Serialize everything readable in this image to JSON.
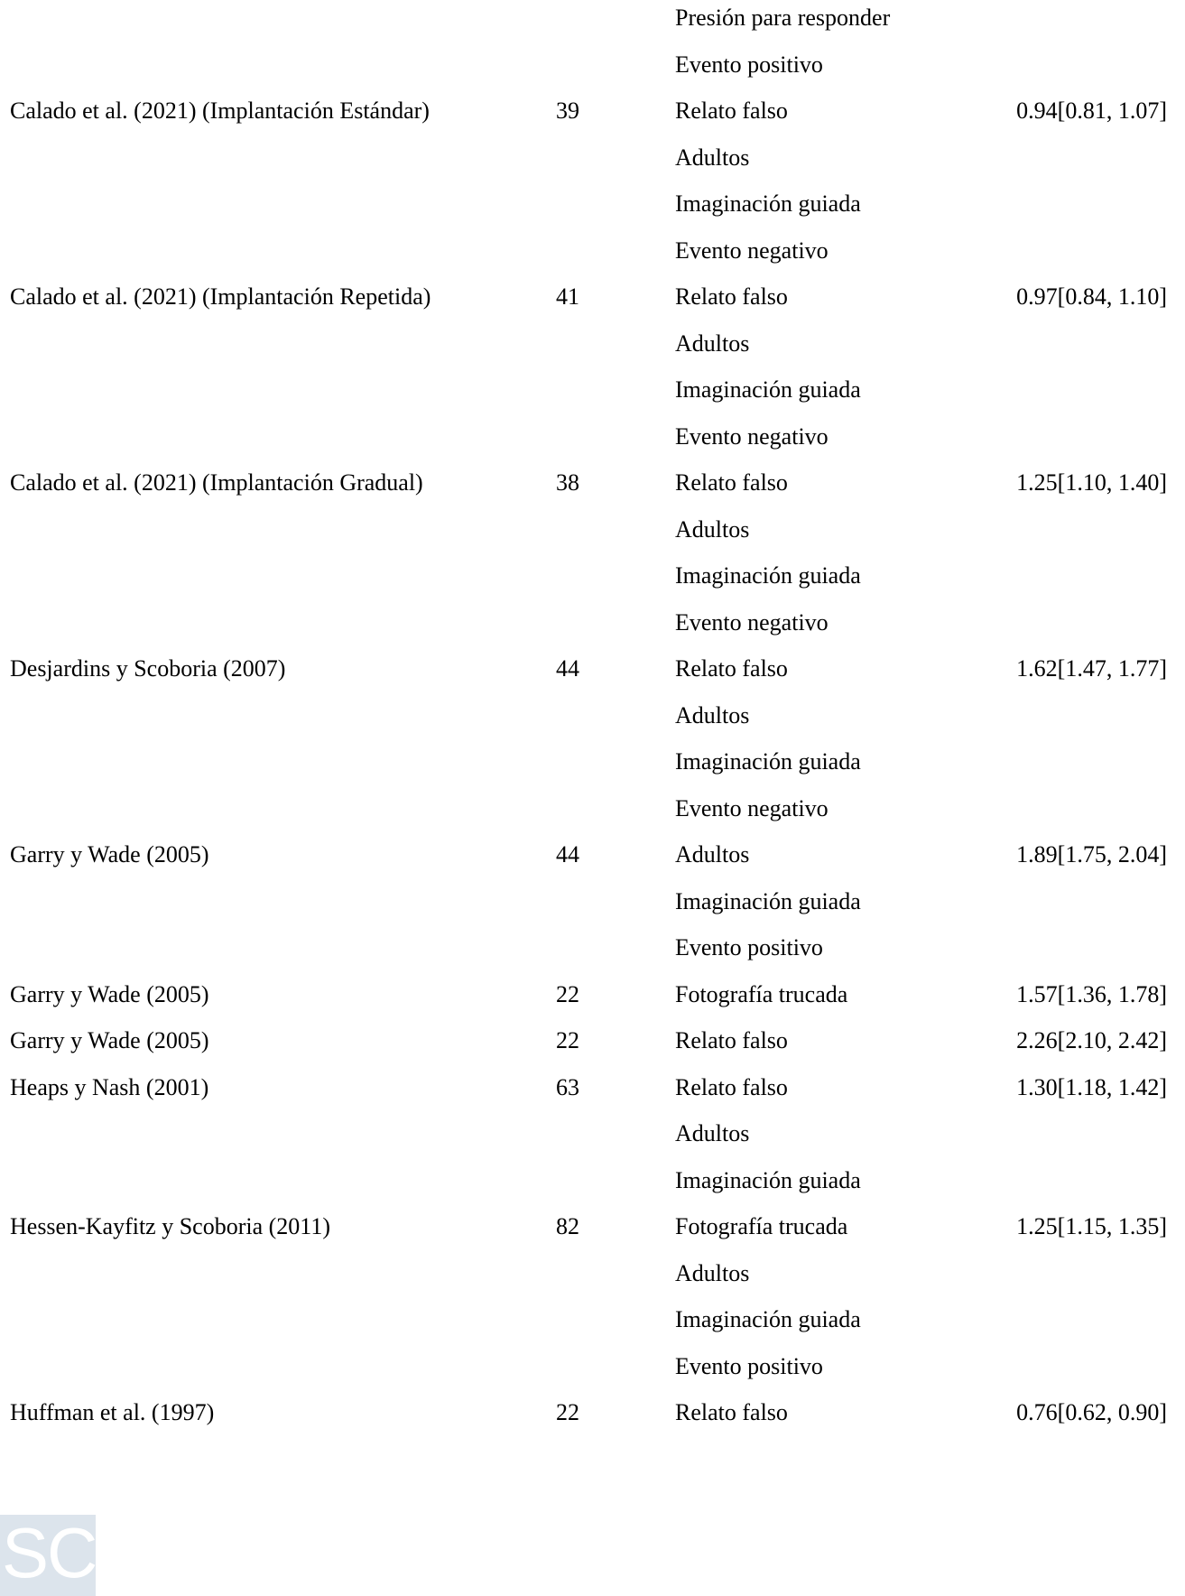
{
  "rows": [
    {
      "study": "",
      "n": "",
      "moderator": "Presión para responder",
      "effect": ""
    },
    {
      "study": "",
      "n": "",
      "moderator": "Evento positivo",
      "effect": ""
    },
    {
      "study": "Calado et al. (2021) (Implantación Estándar)",
      "n": "39",
      "moderator": "Relato falso",
      "effect": "0.94[0.81, 1.07]"
    },
    {
      "study": "",
      "n": "",
      "moderator": "Adultos",
      "effect": ""
    },
    {
      "study": "",
      "n": "",
      "moderator": "Imaginación guiada",
      "effect": ""
    },
    {
      "study": "",
      "n": "",
      "moderator": "Evento negativo",
      "effect": ""
    },
    {
      "study": "Calado et al. (2021) (Implantación Repetida)",
      "n": "41",
      "moderator": "Relato falso",
      "effect": "0.97[0.84, 1.10]"
    },
    {
      "study": "",
      "n": "",
      "moderator": "Adultos",
      "effect": ""
    },
    {
      "study": "",
      "n": "",
      "moderator": "Imaginación guiada",
      "effect": ""
    },
    {
      "study": "",
      "n": "",
      "moderator": "Evento negativo",
      "effect": ""
    },
    {
      "study": "Calado et al. (2021) (Implantación Gradual)",
      "n": "38",
      "moderator": "Relato falso",
      "effect": "1.25[1.10, 1.40]"
    },
    {
      "study": "",
      "n": "",
      "moderator": "Adultos",
      "effect": ""
    },
    {
      "study": "",
      "n": "",
      "moderator": "Imaginación guiada",
      "effect": ""
    },
    {
      "study": "",
      "n": "",
      "moderator": "Evento negativo",
      "effect": ""
    },
    {
      "study": "Desjardins y Scoboria (2007)",
      "n": "44",
      "moderator": "Relato falso",
      "effect": "1.62[1.47, 1.77]"
    },
    {
      "study": "",
      "n": "",
      "moderator": "Adultos",
      "effect": ""
    },
    {
      "study": "",
      "n": "",
      "moderator": "Imaginación guiada",
      "effect": ""
    },
    {
      "study": "",
      "n": "",
      "moderator": "Evento negativo",
      "effect": ""
    },
    {
      "study": "Garry y Wade (2005)",
      "n": "44",
      "moderator": "Adultos",
      "effect": "1.89[1.75, 2.04]"
    },
    {
      "study": "",
      "n": "",
      "moderator": "Imaginación guiada",
      "effect": ""
    },
    {
      "study": "",
      "n": "",
      "moderator": "Evento positivo",
      "effect": ""
    },
    {
      "study": "Garry y Wade (2005)",
      "n": "22",
      "moderator": "Fotografía trucada",
      "effect": "1.57[1.36, 1.78]"
    },
    {
      "study": "Garry y Wade (2005)",
      "n": "22",
      "moderator": "Relato falso",
      "effect": "2.26[2.10, 2.42]"
    },
    {
      "study": "Heaps y Nash (2001)",
      "n": "63",
      "moderator": "Relato falso",
      "effect": "1.30[1.18, 1.42]"
    },
    {
      "study": "",
      "n": "",
      "moderator": "Adultos",
      "effect": ""
    },
    {
      "study": "",
      "n": "",
      "moderator": "Imaginación guiada",
      "effect": ""
    },
    {
      "study": "Hessen-Kayfitz y Scoboria (2011)",
      "n": "82",
      "moderator": "Fotografía trucada",
      "effect": "1.25[1.15, 1.35]"
    },
    {
      "study": "",
      "n": "",
      "moderator": "Adultos",
      "effect": ""
    },
    {
      "study": "",
      "n": "",
      "moderator": "Imaginación guiada",
      "effect": ""
    },
    {
      "study": "",
      "n": "",
      "moderator": "Evento positivo",
      "effect": ""
    },
    {
      "study": "Huffman et al. (1997)",
      "n": "22",
      "moderator": "Relato falso",
      "effect": "0.76[0.62, 0.90]"
    }
  ],
  "logo": {
    "text": "SC"
  }
}
